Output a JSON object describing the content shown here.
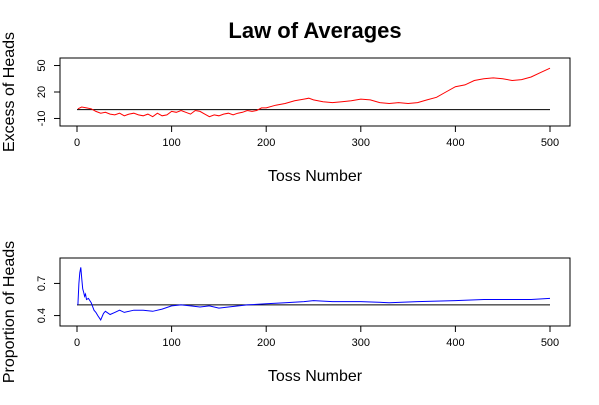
{
  "title": "Law of Averages",
  "colors": {
    "top_series": "#ff0000",
    "bottom_series": "#0000ff",
    "reference": "#000000",
    "axes": "#000000"
  },
  "chart_data": [
    {
      "type": "line",
      "xlabel": "Toss Number",
      "ylabel": "Excess of Heads",
      "xlim": [
        0,
        500
      ],
      "ylim": [
        -14,
        54
      ],
      "x_ticks": [
        0,
        100,
        200,
        300,
        400,
        500
      ],
      "y_ticks": [
        -10,
        20,
        50
      ],
      "reference_line": 0,
      "grid": false,
      "series": [
        {
          "color": "#ff0000",
          "x": [
            1,
            5,
            10,
            15,
            20,
            25,
            30,
            35,
            40,
            45,
            50,
            55,
            60,
            65,
            70,
            75,
            80,
            85,
            90,
            95,
            100,
            105,
            110,
            115,
            120,
            125,
            130,
            135,
            140,
            145,
            150,
            155,
            160,
            165,
            170,
            175,
            180,
            185,
            190,
            195,
            200,
            210,
            220,
            230,
            240,
            245,
            250,
            260,
            270,
            280,
            290,
            300,
            310,
            320,
            330,
            340,
            350,
            360,
            370,
            380,
            390,
            400,
            410,
            420,
            430,
            440,
            450,
            460,
            470,
            480,
            490,
            500
          ],
          "y": [
            1,
            3,
            2,
            1,
            -2,
            -4,
            -3,
            -5,
            -6,
            -4,
            -7,
            -5,
            -4,
            -6,
            -7,
            -5,
            -8,
            -4,
            -7,
            -6,
            -2,
            -3,
            -1,
            -3,
            -5,
            -1,
            -2,
            -5,
            -8,
            -6,
            -7,
            -5,
            -4,
            -6,
            -4,
            -3,
            -1,
            -2,
            -1,
            2,
            2,
            5,
            7,
            10,
            12,
            13,
            11,
            9,
            8,
            9,
            10,
            12,
            11,
            8,
            7,
            8,
            7,
            8,
            11,
            14,
            20,
            26,
            28,
            33,
            35,
            36,
            35,
            33,
            34,
            37,
            42,
            47
          ]
        }
      ]
    },
    {
      "type": "line",
      "xlabel": "Toss Number",
      "ylabel": "Proportion of Heads",
      "xlim": [
        0,
        500
      ],
      "ylim": [
        0.34,
        0.9
      ],
      "x_ticks": [
        0,
        100,
        200,
        300,
        400,
        500
      ],
      "y_ticks": [
        0.4,
        0.7
      ],
      "reference_line": 0.5,
      "grid": false,
      "series": [
        {
          "color": "#0000ff",
          "x": [
            1,
            2,
            3,
            4,
            5,
            6,
            7,
            8,
            9,
            10,
            12,
            15,
            18,
            20,
            22,
            25,
            28,
            30,
            35,
            40,
            45,
            50,
            60,
            70,
            80,
            90,
            100,
            110,
            120,
            130,
            140,
            150,
            160,
            180,
            200,
            220,
            240,
            250,
            270,
            300,
            330,
            360,
            400,
            430,
            460,
            480,
            500
          ],
          "y": [
            0.5,
            0.7,
            0.8,
            0.85,
            0.75,
            0.65,
            0.62,
            0.58,
            0.6,
            0.55,
            0.56,
            0.52,
            0.45,
            0.43,
            0.4,
            0.36,
            0.42,
            0.44,
            0.41,
            0.43,
            0.45,
            0.43,
            0.45,
            0.45,
            0.44,
            0.46,
            0.49,
            0.5,
            0.49,
            0.48,
            0.49,
            0.47,
            0.48,
            0.5,
            0.51,
            0.52,
            0.53,
            0.54,
            0.53,
            0.53,
            0.52,
            0.53,
            0.54,
            0.55,
            0.55,
            0.55,
            0.56
          ]
        }
      ]
    }
  ]
}
